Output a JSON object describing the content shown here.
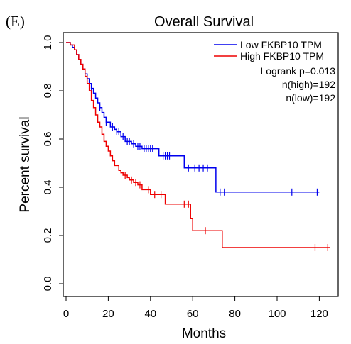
{
  "panel_label": "(E)",
  "chart_data": {
    "type": "line",
    "title": "Overall Survival",
    "xlabel": "Months",
    "ylabel": "Percent survival",
    "xlim": [
      0,
      125
    ],
    "ylim": [
      0,
      1.0
    ],
    "x_ticks": [
      0,
      20,
      40,
      60,
      80,
      100,
      120
    ],
    "x_tick_labels": [
      "0",
      "20",
      "40",
      "60",
      "80",
      "100",
      "120"
    ],
    "y_ticks": [
      0.0,
      0.2,
      0.4,
      0.6,
      0.8,
      1.0
    ],
    "y_tick_labels": [
      "0.0",
      "0.2",
      "0.4",
      "0.6",
      "0.8",
      "1.0"
    ],
    "grid": false,
    "legend_position": "top-right",
    "annotations": [
      "Logrank p=0.013",
      "n(high)=192",
      "n(low)=192"
    ],
    "series": [
      {
        "name": "Low FKBP10 TPM",
        "color": "#0000ee",
        "step_points": [
          [
            0,
            1.0
          ],
          [
            2,
            0.99
          ],
          [
            3,
            0.98
          ],
          [
            4,
            0.97
          ],
          [
            5,
            0.95
          ],
          [
            6,
            0.93
          ],
          [
            7,
            0.91
          ],
          [
            8,
            0.89
          ],
          [
            9,
            0.87
          ],
          [
            10,
            0.85
          ],
          [
            11,
            0.83
          ],
          [
            12,
            0.81
          ],
          [
            13,
            0.79
          ],
          [
            14,
            0.77
          ],
          [
            15,
            0.75
          ],
          [
            16,
            0.73
          ],
          [
            17,
            0.71
          ],
          [
            18,
            0.69
          ],
          [
            19,
            0.67
          ],
          [
            21,
            0.65
          ],
          [
            23,
            0.64
          ],
          [
            24,
            0.63
          ],
          [
            26,
            0.61
          ],
          [
            28,
            0.59
          ],
          [
            31,
            0.58
          ],
          [
            33,
            0.57
          ],
          [
            36,
            0.56
          ],
          [
            44,
            0.53
          ],
          [
            56,
            0.48
          ],
          [
            71,
            0.38
          ],
          [
            120,
            0.38
          ]
        ],
        "censor_points": [
          [
            10,
            0.85
          ],
          [
            12,
            0.81
          ],
          [
            16,
            0.73
          ],
          [
            19,
            0.67
          ],
          [
            22,
            0.65
          ],
          [
            24,
            0.63
          ],
          [
            25,
            0.63
          ],
          [
            27,
            0.61
          ],
          [
            29,
            0.59
          ],
          [
            30,
            0.59
          ],
          [
            32,
            0.58
          ],
          [
            34,
            0.57
          ],
          [
            35,
            0.57
          ],
          [
            37,
            0.56
          ],
          [
            38,
            0.56
          ],
          [
            39,
            0.56
          ],
          [
            40,
            0.56
          ],
          [
            41,
            0.56
          ],
          [
            46,
            0.53
          ],
          [
            47,
            0.53
          ],
          [
            48,
            0.53
          ],
          [
            49,
            0.53
          ],
          [
            58,
            0.48
          ],
          [
            61,
            0.48
          ],
          [
            63,
            0.48
          ],
          [
            65,
            0.48
          ],
          [
            67,
            0.48
          ],
          [
            73,
            0.38
          ],
          [
            75,
            0.38
          ],
          [
            107,
            0.38
          ],
          [
            119,
            0.38
          ]
        ]
      },
      {
        "name": "High FKBP10 TPM",
        "color": "#ee0000",
        "step_points": [
          [
            0,
            1.0
          ],
          [
            2,
            0.99
          ],
          [
            4,
            0.97
          ],
          [
            5,
            0.95
          ],
          [
            6,
            0.93
          ],
          [
            7,
            0.91
          ],
          [
            8,
            0.89
          ],
          [
            9,
            0.86
          ],
          [
            10,
            0.83
          ],
          [
            11,
            0.8
          ],
          [
            12,
            0.76
          ],
          [
            13,
            0.73
          ],
          [
            14,
            0.7
          ],
          [
            15,
            0.67
          ],
          [
            16,
            0.65
          ],
          [
            17,
            0.62
          ],
          [
            18,
            0.59
          ],
          [
            19,
            0.57
          ],
          [
            20,
            0.55
          ],
          [
            21,
            0.53
          ],
          [
            22,
            0.51
          ],
          [
            23,
            0.49
          ],
          [
            25,
            0.47
          ],
          [
            26,
            0.46
          ],
          [
            27,
            0.45
          ],
          [
            29,
            0.44
          ],
          [
            30,
            0.43
          ],
          [
            32,
            0.42
          ],
          [
            34,
            0.41
          ],
          [
            36,
            0.39
          ],
          [
            40,
            0.37
          ],
          [
            47,
            0.33
          ],
          [
            59,
            0.27
          ],
          [
            60,
            0.22
          ],
          [
            74,
            0.15
          ],
          [
            125,
            0.15
          ]
        ],
        "censor_points": [
          [
            28,
            0.45
          ],
          [
            31,
            0.43
          ],
          [
            33,
            0.42
          ],
          [
            35,
            0.41
          ],
          [
            39,
            0.39
          ],
          [
            42,
            0.37
          ],
          [
            45,
            0.37
          ],
          [
            56,
            0.33
          ],
          [
            58,
            0.33
          ],
          [
            66,
            0.22
          ],
          [
            118,
            0.15
          ],
          [
            124,
            0.15
          ]
        ]
      }
    ]
  }
}
